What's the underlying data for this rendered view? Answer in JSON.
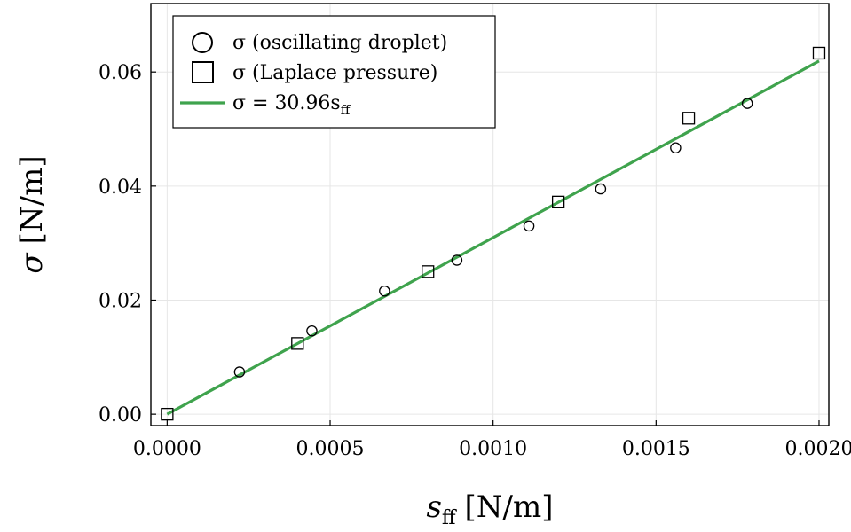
{
  "chart_data": {
    "type": "scatter",
    "xlabel_var": "s",
    "xlabel_sub": "ff",
    "xlabel_unit": "[N/m]",
    "ylabel_var": "σ",
    "ylabel_unit": "[N/m]",
    "xlim": [
      -5e-05,
      0.00203
    ],
    "ylim": [
      -0.002,
      0.072
    ],
    "xticks": [
      0.0,
      0.0005,
      0.001,
      0.0015,
      0.002
    ],
    "xtick_labels": [
      "0.0000",
      "0.0005",
      "0.0010",
      "0.0015",
      "0.0020"
    ],
    "yticks": [
      0.0,
      0.02,
      0.04,
      0.06
    ],
    "ytick_labels": [
      "0.00",
      "0.02",
      "0.04",
      "0.06"
    ],
    "grid": true,
    "legend_position": "top-left",
    "series": [
      {
        "name": "σ (oscillating droplet)",
        "marker": "circle",
        "x": [
          0.000222,
          0.000444,
          0.000667,
          0.000889,
          0.00111,
          0.00133,
          0.00156,
          0.00178
        ],
        "y": [
          0.0074,
          0.0146,
          0.0216,
          0.027,
          0.033,
          0.0395,
          0.0467,
          0.0545
        ]
      },
      {
        "name": "σ (Laplace pressure)",
        "marker": "square",
        "x": [
          0.0,
          0.0004,
          0.0008,
          0.0012,
          0.0016,
          0.002
        ],
        "y": [
          0.0,
          0.0124,
          0.025,
          0.0372,
          0.0519,
          0.0633
        ]
      },
      {
        "name": "σ = 30.96s",
        "name_sub": "ff",
        "marker": "line",
        "color": "#3fa34d",
        "x": [
          0.0,
          0.002
        ],
        "y": [
          0.0,
          0.06192
        ]
      }
    ]
  }
}
